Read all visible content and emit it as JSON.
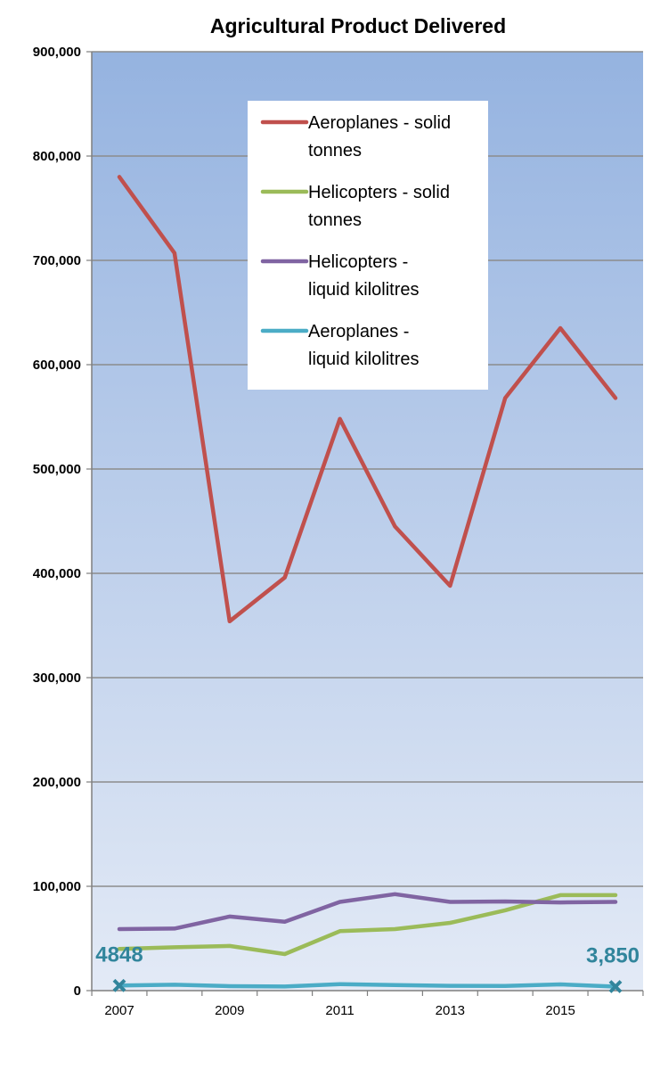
{
  "chart_data": {
    "type": "line",
    "title": "Agricultural Product Delivered",
    "xlabel": "",
    "ylabel": "",
    "x": [
      2007,
      2008,
      2009,
      2010,
      2011,
      2012,
      2013,
      2014,
      2015,
      2016
    ],
    "x_tick_labels": [
      "2007",
      "2009",
      "2011",
      "2013",
      "2015"
    ],
    "y_tick_labels": [
      "0",
      "100,000",
      "200,000",
      "300,000",
      "400,000",
      "500,000",
      "600,000",
      "700,000",
      "800,000",
      "900,000"
    ],
    "ylim": [
      0,
      900000
    ],
    "grid": true,
    "legend_position": "top-right (inside plot)",
    "series": [
      {
        "name": "Aeroplanes - solid tonnes",
        "color": "#C0504D",
        "values": [
          780000,
          707000,
          354000,
          396000,
          548000,
          445000,
          388000,
          568000,
          635000,
          568000
        ]
      },
      {
        "name": "Helicopters - solid tonnes",
        "color": "#9BBB59",
        "values": [
          40000,
          41500,
          42800,
          35000,
          57000,
          59000,
          65000,
          77000,
          91500,
          91500
        ]
      },
      {
        "name": "Helicopters - liquid kilolitres",
        "color": "#8064A2",
        "values": [
          59000,
          59500,
          71000,
          66000,
          85000,
          92500,
          85000,
          85500,
          84500,
          85000
        ]
      },
      {
        "name": "Aeroplanes - liquid kilolitres",
        "color": "#4BACC6",
        "values": [
          4848,
          5600,
          4300,
          3900,
          6200,
          5400,
          4600,
          4500,
          6000,
          3850
        ]
      }
    ],
    "legend_lines": [
      [
        "Aeroplanes - solid",
        "tonnes"
      ],
      [
        "Helicopters - solid",
        "tonnes"
      ],
      [
        "Helicopters -",
        "liquid kilolitres"
      ],
      [
        "Aeroplanes -",
        "liquid kilolitres"
      ]
    ],
    "annotations": [
      {
        "text": "4848",
        "x": 2007,
        "y": 4848,
        "marker": "x",
        "color": "#31859C"
      },
      {
        "text": "3,850",
        "x": 2016,
        "y": 3850,
        "marker": "x",
        "color": "#31859C"
      }
    ],
    "background_gradient": [
      "#95B3E0",
      "#E3EAF6"
    ]
  }
}
